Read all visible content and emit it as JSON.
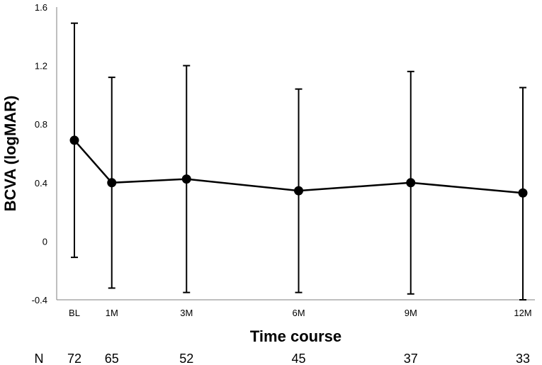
{
  "chart_data": {
    "type": "line",
    "title": "",
    "xlabel": "Time course",
    "ylabel": "BCVA (logMAR)",
    "ylim": [
      -0.4,
      1.6
    ],
    "yticks": [
      -0.4,
      0,
      0.4,
      0.8,
      1.2,
      1.6
    ],
    "ytick_labels": [
      "-0.4",
      "0",
      "0.4",
      "0.8",
      "1.2",
      "1.6"
    ],
    "categories": [
      "BL",
      "1M",
      "3M",
      "6M",
      "9M",
      "12M"
    ],
    "x_months": [
      0,
      1,
      3,
      6,
      9,
      12
    ],
    "values": [
      0.69,
      0.4,
      0.425,
      0.345,
      0.4,
      0.33
    ],
    "error_upper": [
      1.49,
      1.12,
      1.2,
      1.04,
      1.16,
      1.05
    ],
    "error_lower": [
      -0.11,
      -0.32,
      -0.35,
      -0.35,
      -0.36,
      -0.4
    ],
    "grid": false,
    "legend": "none",
    "n_label": "N",
    "n_values": [
      "72",
      "65",
      "52",
      "45",
      "37",
      "33"
    ],
    "line_color": "#000000"
  }
}
